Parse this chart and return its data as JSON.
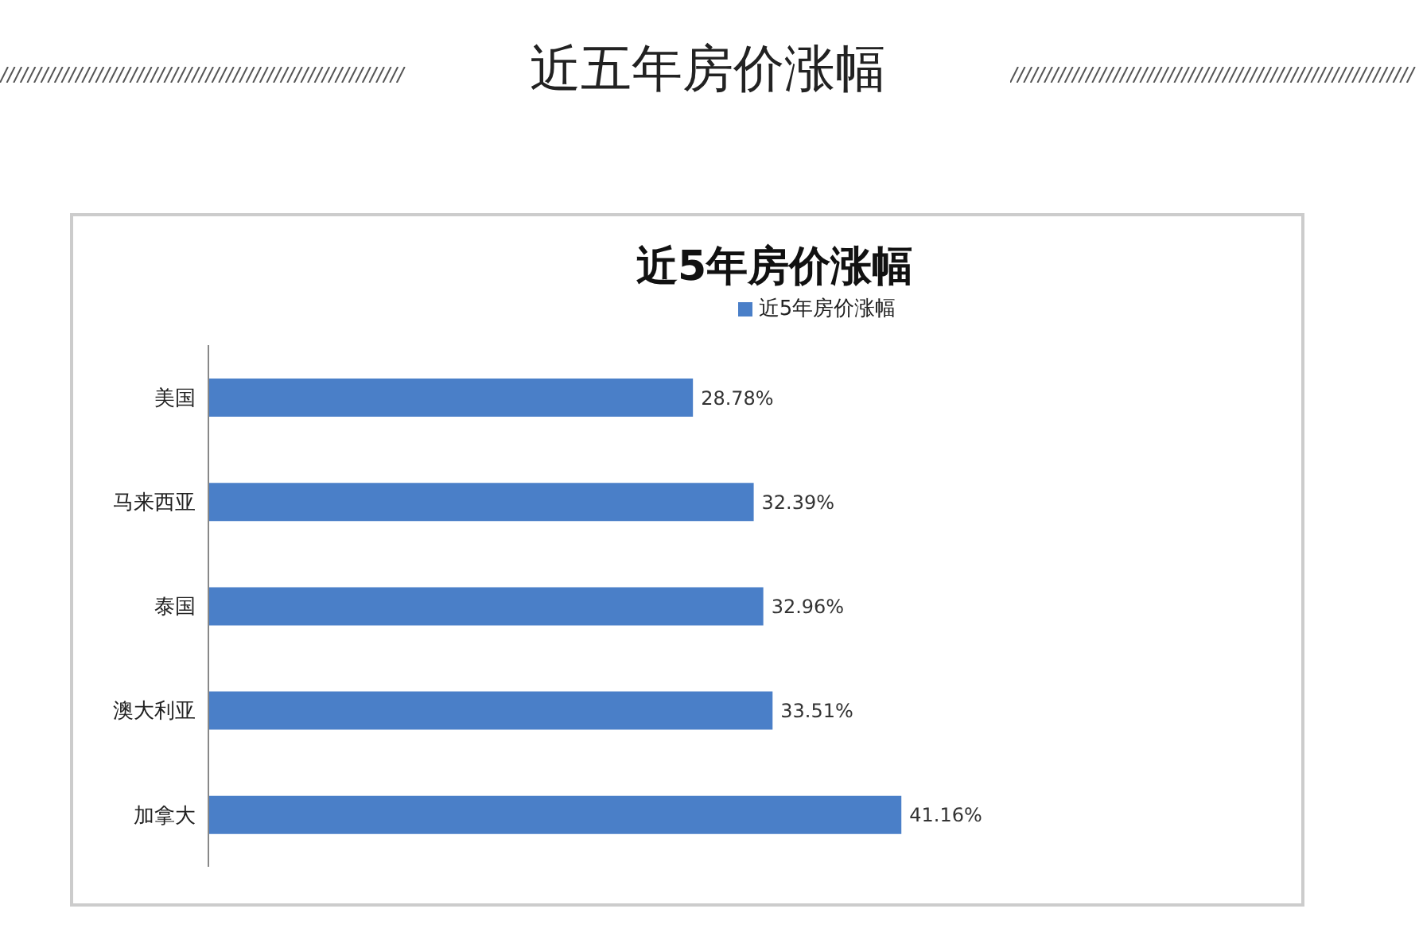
{
  "chart_data": {
    "type": "bar",
    "orientation": "horizontal",
    "title": "近五年房价涨幅",
    "subtitle": "近5年房价涨幅",
    "categories": [
      "美国",
      "马来西亚",
      "泰国",
      "澳大利亚",
      "加拿大"
    ],
    "series": [
      {
        "name": "近5年房价涨幅",
        "color": "#4a7fc8",
        "values": [
          28.78,
          32.39,
          32.96,
          33.51,
          41.16
        ],
        "value_labels": [
          "28.78%",
          "32.39%",
          "32.96%",
          "33.51%",
          "41.16%"
        ]
      }
    ],
    "tick_labels": "y",
    "legend": "top"
  }
}
